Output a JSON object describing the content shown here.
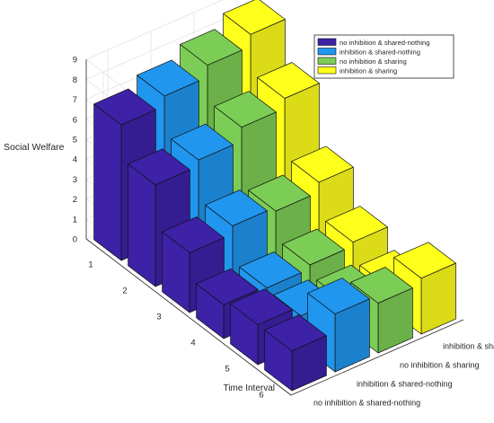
{
  "chart_data": {
    "type": "bar",
    "subtype": "3d-bar",
    "title": "",
    "zlabel": "Social Welfare",
    "ylabel": "Time Interval",
    "zlim": [
      0,
      9
    ],
    "z_ticks": [
      "0",
      "1",
      "2",
      "3",
      "4",
      "5",
      "6",
      "7",
      "8",
      "9"
    ],
    "time_intervals": [
      "1",
      "2",
      "3",
      "4",
      "5",
      "6"
    ],
    "strategies": [
      "no inhibition & shared-nothing",
      "inhibition & shared-nothing",
      "no inhibition & sharing",
      "inhibition & sharing"
    ],
    "grid": true,
    "legend_position": "top-right",
    "series": [
      {
        "name": "no inhibition & shared-nothing",
        "color": "#3d22a8",
        "values": [
          6.8,
          5.1,
          3.0,
          1.7,
          2.0,
          2.0
        ]
      },
      {
        "name": "inhibition & shared-nothing",
        "color": "#2196ee",
        "values": [
          7.3,
          5.4,
          3.4,
          1.6,
          1.5,
          2.9
        ]
      },
      {
        "name": "no inhibition & sharing",
        "color": "#7ccd55",
        "values": [
          7.9,
          6.1,
          3.2,
          1.8,
          1.3,
          2.5
        ]
      },
      {
        "name": "inhibition & sharing",
        "color": "#ffff1c",
        "values": [
          8.5,
          6.6,
          3.7,
          2.0,
          1.1,
          2.8
        ]
      }
    ]
  }
}
